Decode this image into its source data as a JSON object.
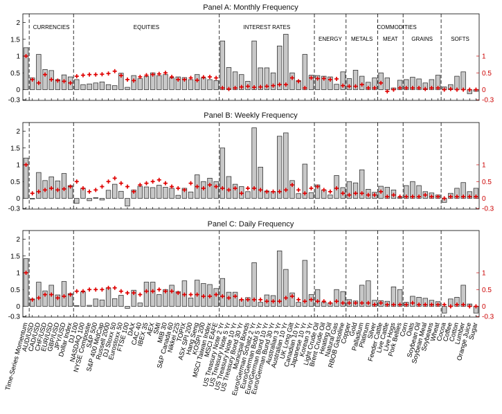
{
  "figure": {
    "left_axis_ticks": [
      "2",
      "1.5",
      "1",
      "0.5",
      "0",
      "-0.3"
    ],
    "right_axis_ticks": [
      "1",
      "0.5",
      "0",
      "-0.3"
    ]
  },
  "chart_data": {
    "type": "bar",
    "bar_color": "#c8c8c8",
    "marker_color": "#e00000",
    "right_axis_color": "#cc0000",
    "categories": [
      "Time-Series Momentum",
      "AUD/USD",
      "CAD/USD",
      "CHF/USD",
      "EUR/USD",
      "GBP/USD",
      "JPY/USD",
      "Dollar Index",
      "DJ 100",
      "NASDAQ 100",
      "NYSE Composite",
      "S&P 500",
      "S&P 400 MidCap",
      "Russell 2000",
      "DJ Stoxx 50",
      "Eurostoxx 50",
      "FTSE 100",
      "DAX",
      "CAC 40",
      "IBEX 35",
      "AEX",
      "SMI",
      "MIB 30",
      "S&P Canada 60",
      "Nikkei 225",
      "TOPIX",
      "ASX SPI 200",
      "Hang Seng",
      "KOSPI 200",
      "MSCI Taiwan Index",
      "MSCI EAFE",
      "US Treasury Note 2 Yr",
      "US Treasury Note 5 Yr",
      "US Treasury Note 10 Yr",
      "US Treasury Bond 30 Yr",
      "Municipal Bonds",
      "Euro/German Schatz 2 Yr",
      "Euro/German Bobl 5 Yr",
      "Euro/German Bund 10 Yr",
      "Euro/German Bund 30 Yr",
      "Australian 3 Yr",
      "Australian 10 Yr",
      "UK Long Gilt",
      "Canadian 10 Yr",
      "Japanese 10 Yr",
      "Korean 3 Yr",
      "Light Crude Oil",
      "Brent Crude Oil",
      "Heating Oil",
      "Natural Gas",
      "RBOB Gasoline",
      "Copper",
      "Gold",
      "Palladium",
      "Platinum",
      "Silver",
      "Feeder Cattle",
      "Live Cattle",
      "Live Hogs",
      "Pork Bellies",
      "Corn",
      "Oats",
      "Soybean Oil",
      "Soybean Meal",
      "Soybeans",
      "Wheat",
      "Cocoa",
      "Coffee",
      "Cotton",
      "Lumber",
      "Orange Juice",
      "Sugar"
    ],
    "groups": [
      {
        "label": "CURRENCIES",
        "start": 1,
        "end": 7
      },
      {
        "label": "EQUITIES",
        "start": 8,
        "end": 30
      },
      {
        "label": "INTEREST RATES",
        "start": 31,
        "end": 45
      },
      {
        "label": "COMMODITIES",
        "start": 46,
        "end": 71
      },
      {
        "label": "ENERGY",
        "start": 46,
        "end": 50
      },
      {
        "label": "METALS",
        "start": 51,
        "end": 55
      },
      {
        "label": "MEAT",
        "start": 56,
        "end": 59
      },
      {
        "label": "GRAINS",
        "start": 60,
        "end": 65
      },
      {
        "label": "SOFTS",
        "start": 66,
        "end": 71
      }
    ],
    "dividers_after": [
      0,
      7,
      30,
      45,
      50,
      55,
      59,
      65
    ],
    "left_axis": {
      "ylim": [
        -0.3,
        2.2
      ],
      "ticks": [
        -0.3,
        0,
        0.5,
        1,
        1.5,
        2
      ],
      "series": "bars"
    },
    "right_axis": {
      "ylim": [
        -0.3,
        1.5
      ],
      "ticks": [
        -0.3,
        0,
        0.5,
        1
      ],
      "series": "plus markers"
    },
    "panels": [
      {
        "title": "Panel A: Monthly Frequency",
        "bars": [
          1.25,
          0.35,
          1.05,
          0.6,
          0.57,
          0.3,
          0.44,
          0.38,
          0.3,
          0.15,
          0.17,
          0.2,
          0.23,
          0.15,
          0.12,
          0.49,
          0.07,
          0.42,
          0.33,
          0.39,
          0.5,
          0.42,
          0.45,
          0.35,
          0.38,
          0.36,
          0.3,
          0.45,
          0.35,
          0.3,
          0.27,
          1.45,
          0.66,
          0.53,
          0.45,
          0.25,
          1.45,
          0.65,
          0.65,
          0.5,
          1.3,
          1.65,
          0.5,
          0.27,
          1.05,
          0.43,
          0.42,
          0.4,
          0.38,
          0.16,
          0.53,
          0.33,
          0.58,
          0.4,
          0.22,
          0.35,
          0.5,
          0.35,
          0.05,
          0.28,
          0.3,
          0.37,
          0.32,
          0.2,
          0.3,
          0.43,
          0.08,
          0.15,
          0.4,
          0.53,
          -0.12,
          -0.05
        ],
        "markers": [
          1.0,
          0.3,
          0.2,
          0.45,
          0.3,
          0.27,
          0.25,
          0.2,
          0.4,
          0.43,
          0.45,
          0.45,
          0.46,
          0.48,
          0.55,
          0.42,
          0.3,
          0.27,
          0.38,
          0.43,
          0.45,
          0.47,
          0.5,
          0.38,
          0.3,
          0.3,
          0.35,
          0.28,
          0.37,
          0.38,
          0.35,
          0.05,
          0.02,
          0.05,
          0.08,
          0.1,
          0.07,
          0.08,
          0.1,
          0.12,
          0.15,
          0.15,
          0.35,
          0.25,
          0.05,
          0.35,
          0.33,
          0.33,
          0.3,
          0.32,
          0.12,
          0.1,
          0.1,
          0.15,
          0.05,
          0.05,
          0.2,
          -0.05,
          0.0,
          0.05,
          0.05,
          0.05,
          0.05,
          0.02,
          0.05,
          0.05,
          0.0,
          0.02,
          0.0,
          0.0,
          0.0,
          0.0
        ]
      },
      {
        "title": "Panel B: Weekly Frequency",
        "bars": [
          1.2,
          -0.02,
          0.77,
          0.53,
          0.64,
          0.52,
          0.74,
          0.38,
          -0.15,
          0.3,
          -0.07,
          0.02,
          -0.05,
          0.24,
          0.42,
          0.21,
          -0.23,
          0.25,
          0.36,
          0.34,
          0.32,
          0.39,
          0.33,
          0.3,
          0.09,
          0.3,
          0.19,
          0.7,
          0.5,
          0.6,
          0.5,
          1.5,
          0.65,
          0.42,
          0.35,
          0.2,
          2.1,
          0.93,
          0.22,
          0.2,
          1.85,
          1.95,
          0.53,
          0.14,
          1.02,
          0.17,
          0.4,
          0.25,
          0.1,
          0.68,
          0.32,
          0.5,
          0.46,
          0.85,
          0.27,
          0.18,
          0.36,
          0.33,
          0.25,
          0.03,
          0.38,
          0.5,
          0.38,
          0.2,
          0.16,
          0.1,
          -0.12,
          0.15,
          0.3,
          0.47,
          0.2,
          0.3
        ],
        "markers": [
          1.0,
          0.15,
          0.2,
          0.25,
          0.3,
          0.25,
          0.28,
          0.35,
          0.5,
          0.3,
          0.2,
          0.25,
          0.35,
          0.5,
          0.6,
          0.45,
          0.35,
          0.2,
          0.4,
          0.45,
          0.5,
          0.55,
          0.45,
          0.35,
          0.3,
          0.25,
          0.45,
          0.35,
          0.3,
          0.4,
          0.35,
          0.3,
          0.25,
          0.3,
          0.15,
          0.3,
          0.3,
          0.25,
          0.2,
          0.2,
          0.2,
          0.25,
          0.4,
          0.25,
          0.15,
          0.3,
          0.35,
          0.25,
          0.2,
          0.3,
          0.15,
          0.1,
          0.15,
          0.15,
          0.1,
          0.1,
          0.2,
          0.05,
          0.1,
          0.05,
          0.05,
          0.05,
          0.05,
          0.1,
          0.05,
          0.05,
          0.0,
          0.05,
          0.05,
          0.05,
          0.05,
          0.05
        ]
      },
      {
        "title": "Panel C: Daily Frequency",
        "bars": [
          1.42,
          0.22,
          0.72,
          0.46,
          0.63,
          0.34,
          0.74,
          0.38,
          0.02,
          0.43,
          0.03,
          0.22,
          0.19,
          0.55,
          0.23,
          0.33,
          -0.06,
          0.48,
          0.1,
          0.72,
          0.72,
          0.35,
          0.5,
          0.63,
          0.44,
          0.76,
          0.25,
          0.78,
          0.68,
          0.65,
          0.53,
          0.83,
          0.42,
          0.42,
          0.2,
          0.26,
          1.3,
          0.12,
          0.34,
          0.32,
          1.65,
          1.1,
          0.4,
          0.12,
          1.37,
          0.35,
          0.5,
          0.12,
          0.1,
          0.5,
          0.44,
          0.2,
          0.16,
          0.63,
          0.76,
          0.18,
          0.17,
          0.15,
          0.58,
          0.5,
          0.12,
          0.3,
          0.27,
          0.24,
          0.18,
          0.14,
          -0.2,
          0.22,
          0.27,
          0.63,
          0.07,
          -0.2
        ],
        "markers": [
          1.0,
          0.2,
          0.25,
          0.35,
          0.35,
          0.25,
          0.3,
          0.35,
          0.45,
          0.45,
          0.5,
          0.5,
          0.5,
          0.55,
          0.55,
          0.45,
          0.4,
          0.4,
          0.35,
          0.45,
          0.45,
          0.5,
          0.45,
          0.45,
          0.4,
          0.35,
          0.35,
          0.35,
          0.3,
          0.3,
          0.35,
          0.3,
          0.25,
          0.3,
          0.2,
          0.2,
          0.2,
          0.2,
          0.15,
          0.15,
          0.15,
          0.25,
          0.3,
          0.2,
          0.15,
          0.2,
          0.15,
          0.15,
          0.1,
          0.15,
          0.1,
          0.1,
          0.1,
          0.1,
          0.1,
          0.05,
          0.1,
          0.05,
          0.05,
          0.05,
          0.05,
          0.1,
          0.05,
          0.05,
          0.05,
          0.05,
          0.05,
          0.0,
          0.05,
          0.05,
          0.0,
          0.0
        ]
      }
    ]
  }
}
